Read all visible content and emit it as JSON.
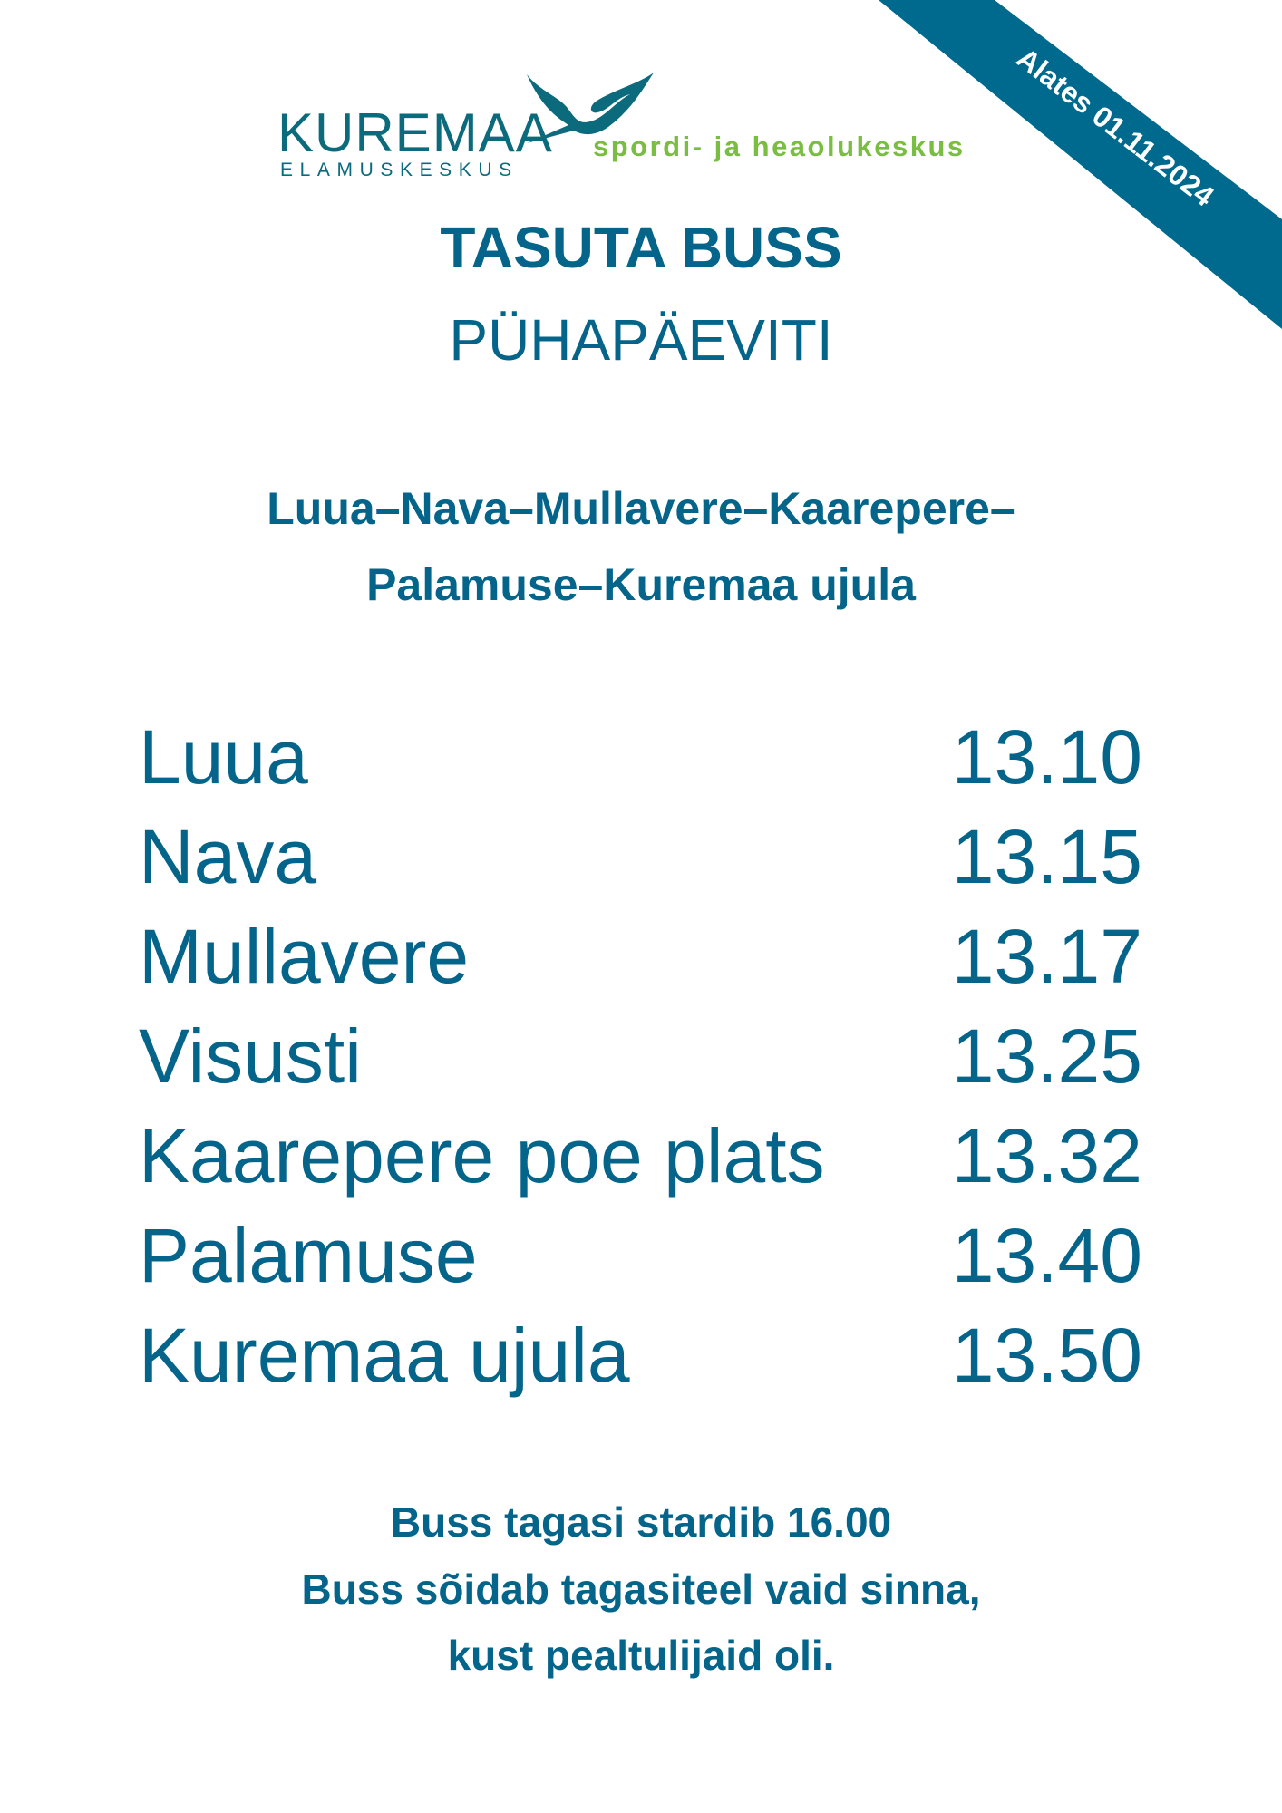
{
  "logo": {
    "name": "KUREMAA",
    "subname": "ELAMUSKESKUS",
    "tagline": "spordi- ja heaolukeskus"
  },
  "banner": {
    "text": "Alates 01.11.2024",
    "color": "#006a8e"
  },
  "header": {
    "title": "TASUTA BUSS",
    "subtitle": "PÜHAPÄEVITI"
  },
  "route": {
    "line1": "Luua–Nava–Mullavere–Kaarepere–",
    "line2": "Palamuse–Kuremaa ujula"
  },
  "schedule": [
    {
      "stop": "Luua",
      "time": "13.10"
    },
    {
      "stop": "Nava",
      "time": "13.15"
    },
    {
      "stop": "Mullavere",
      "time": "13.17"
    },
    {
      "stop": "Visusti",
      "time": "13.25"
    },
    {
      "stop": "Kaarepere poe plats",
      "time": "13.32"
    },
    {
      "stop": "Palamuse",
      "time": "13.40"
    },
    {
      "stop": "Kuremaa ujula",
      "time": "13.50"
    }
  ],
  "footer": {
    "line1": "Buss tagasi stardib 16.00",
    "line2": "Buss sõidab tagasiteel vaid sinna,",
    "line3": "kust pealtulijaid oli."
  },
  "colors": {
    "primary": "#05648a",
    "accent_green": "#7abd43"
  }
}
